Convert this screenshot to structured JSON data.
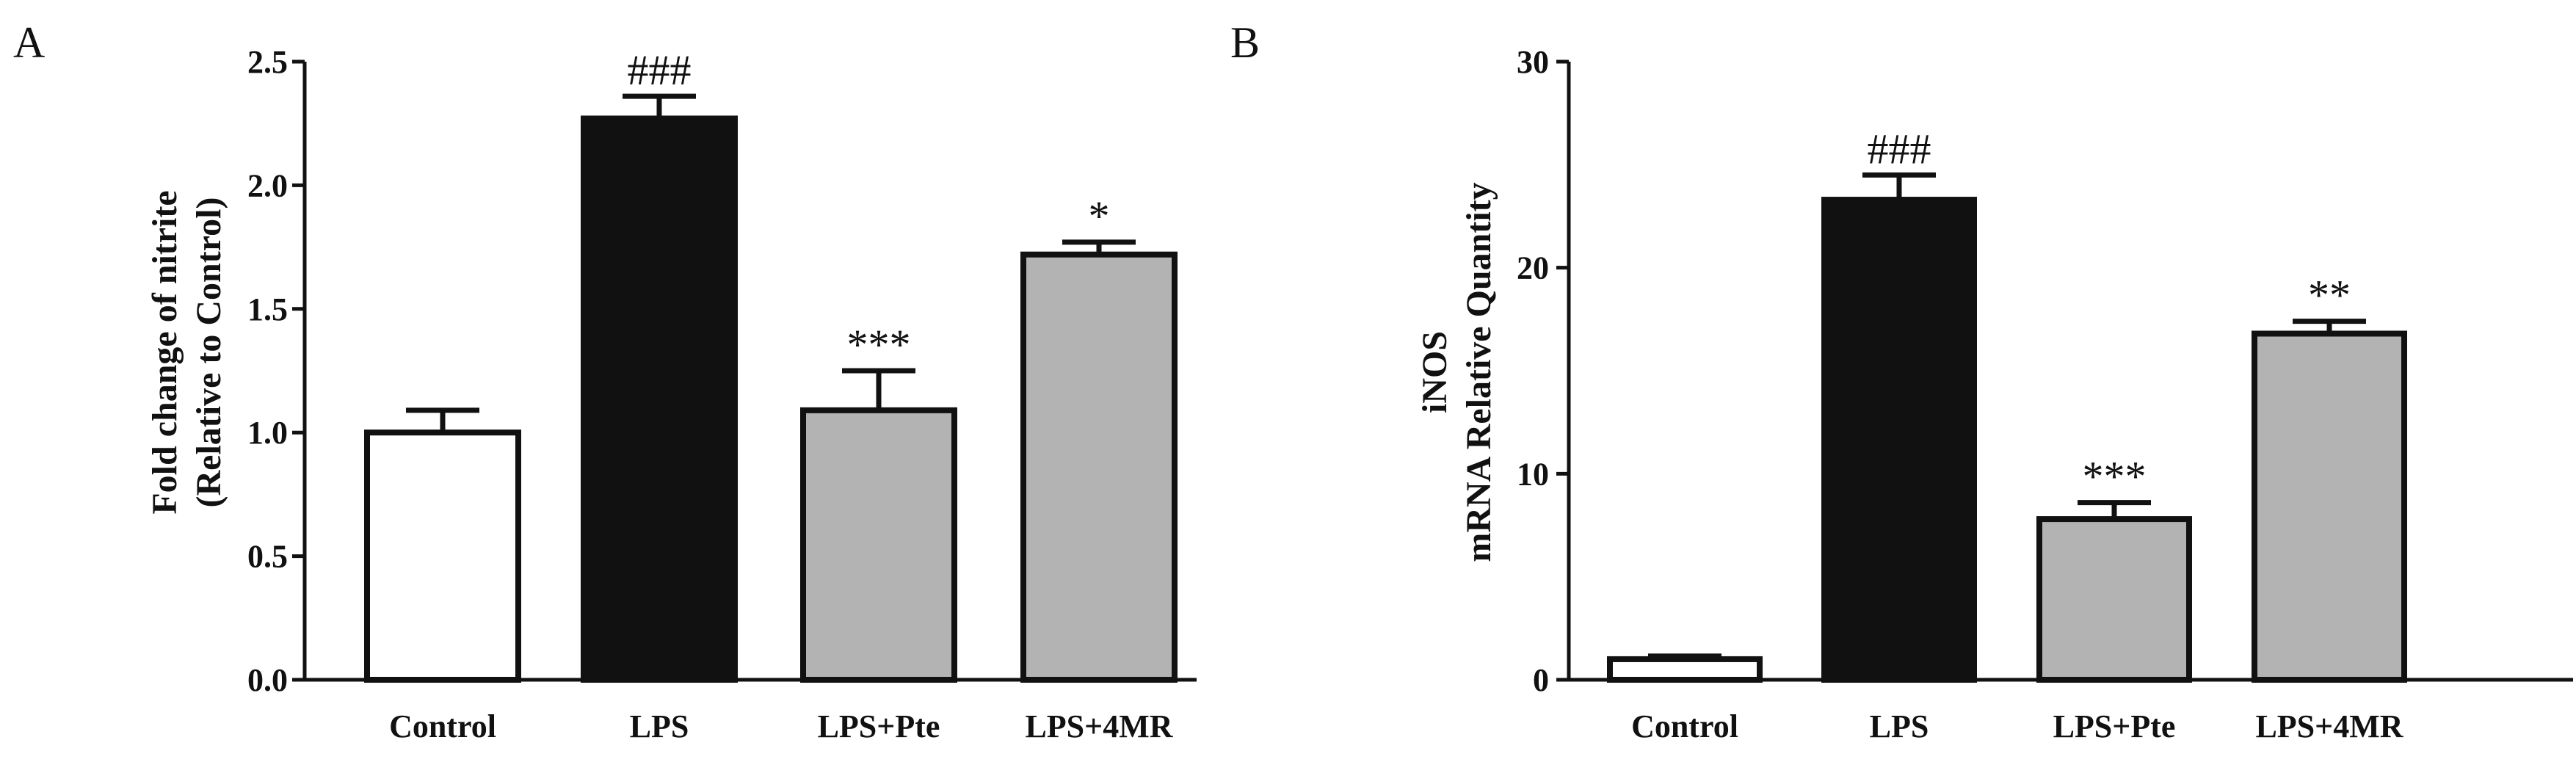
{
  "chart_data": [
    {
      "panel": "A",
      "type": "bar",
      "ylabel_line1": "Fold change of nitrite",
      "ylabel_line2": "(Relative to Control)",
      "ylim": [
        0,
        2.5
      ],
      "yticks": [
        "0.0",
        "0.5",
        "1.0",
        "1.5",
        "2.0",
        "2.5"
      ],
      "categories": [
        "Control",
        "LPS",
        "LPS+Pte",
        "LPS+4MR"
      ],
      "values": [
        1.0,
        2.27,
        1.09,
        1.72
      ],
      "errors": [
        0.09,
        0.09,
        0.16,
        0.05
      ],
      "annotations": [
        "",
        "###",
        "***",
        "*"
      ],
      "bar_colors": [
        "#ffffff",
        "#111111",
        "#b3b3b3",
        "#b3b3b3"
      ]
    },
    {
      "panel": "B",
      "type": "bar",
      "ylabel_line1": "iNOS",
      "ylabel_line2": "mRNA Relative Quantity",
      "ylim": [
        0,
        30
      ],
      "yticks": [
        "0",
        "10",
        "20",
        "30"
      ],
      "categories": [
        "Control",
        "LPS",
        "LPS+Pte",
        "LPS+4MR"
      ],
      "values": [
        1.0,
        23.3,
        7.8,
        16.8
      ],
      "errors": [
        0.15,
        1.2,
        0.8,
        0.6
      ],
      "annotations": [
        "",
        "###",
        "***",
        "**"
      ],
      "bar_colors": [
        "#ffffff",
        "#111111",
        "#b3b3b3",
        "#b3b3b3"
      ]
    }
  ]
}
